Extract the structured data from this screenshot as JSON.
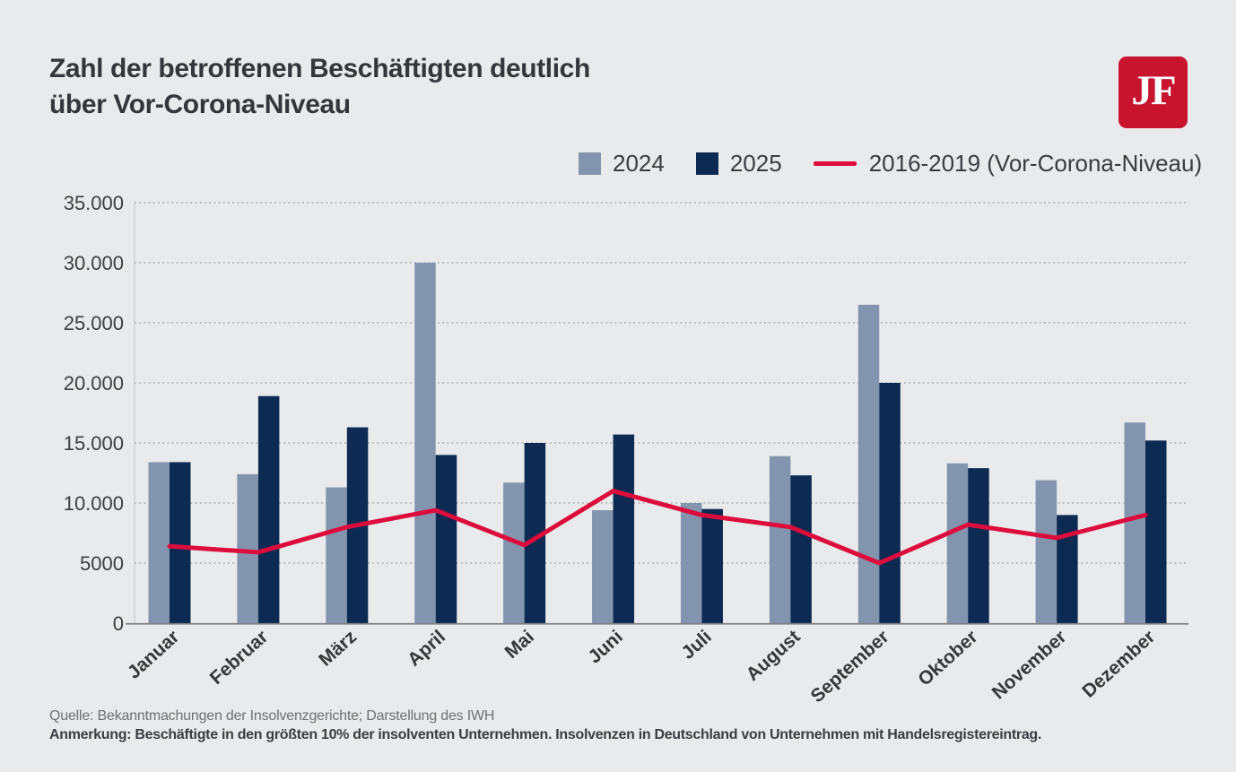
{
  "page": {
    "background": "#E9EAEB"
  },
  "header": {
    "title_line1": "Zahl der betroffenen Beschäftigten deutlich",
    "title_line2": "über Vor-Corona-Niveau",
    "logo_text": "JF",
    "logo_color": "#C9142F"
  },
  "footer": {
    "source": "Quelle: Bekanntmachungen der Insolvenzgerichte; Darstellung des IWH",
    "note": "Anmerkung: Beschäftigte in den größten 10% der insolventen Unternehmen. Insolvenzen in Deutschland von Unternehmen mit Handelsregistereintrag."
  },
  "chart_data": {
    "type": "bar",
    "title": "Zahl der betroffenen Beschäftigten deutlich über Vor-Corona-Niveau",
    "categories": [
      "Januar",
      "Februar",
      "März",
      "April",
      "Mai",
      "Juni",
      "Juli",
      "August",
      "September",
      "Oktober",
      "November",
      "Dezember"
    ],
    "series": [
      {
        "name": "2024",
        "type": "bar",
        "color": "#8395AE",
        "values": [
          13400,
          12400,
          11300,
          30000,
          11700,
          9400,
          10000,
          13900,
          26500,
          13300,
          11900,
          16700
        ]
      },
      {
        "name": "2025",
        "type": "bar",
        "color": "#0D2A52",
        "values": [
          13400,
          18900,
          16300,
          14000,
          15000,
          15700,
          9500,
          12300,
          20000,
          12900,
          9000,
          15200
        ]
      },
      {
        "name": "2016-2019 (Vor-Corona-Niveau)",
        "type": "line",
        "color": "#DC0C3C",
        "values": [
          6400,
          5900,
          8000,
          9400,
          6500,
          11000,
          9000,
          8000,
          5000,
          8200,
          7100,
          9000
        ]
      }
    ],
    "xlabel": "",
    "ylabel": "",
    "ylim": [
      0,
      35000
    ],
    "ytick_values": [
      0,
      5000,
      10000,
      15000,
      20000,
      25000,
      30000,
      35000
    ],
    "ytick_labels": [
      "0",
      "5000",
      "10.000",
      "15.000",
      "20.000",
      "25.000",
      "30.000",
      "35.000"
    ],
    "grid": "dotted-horizontal",
    "legend_position": "top",
    "colors": {
      "grid": "#A8AAAD",
      "axis": "#7E8084",
      "axis_side": "#C4C5C8",
      "tick_text": "#3C3E44",
      "month_text": "#35373B"
    }
  }
}
